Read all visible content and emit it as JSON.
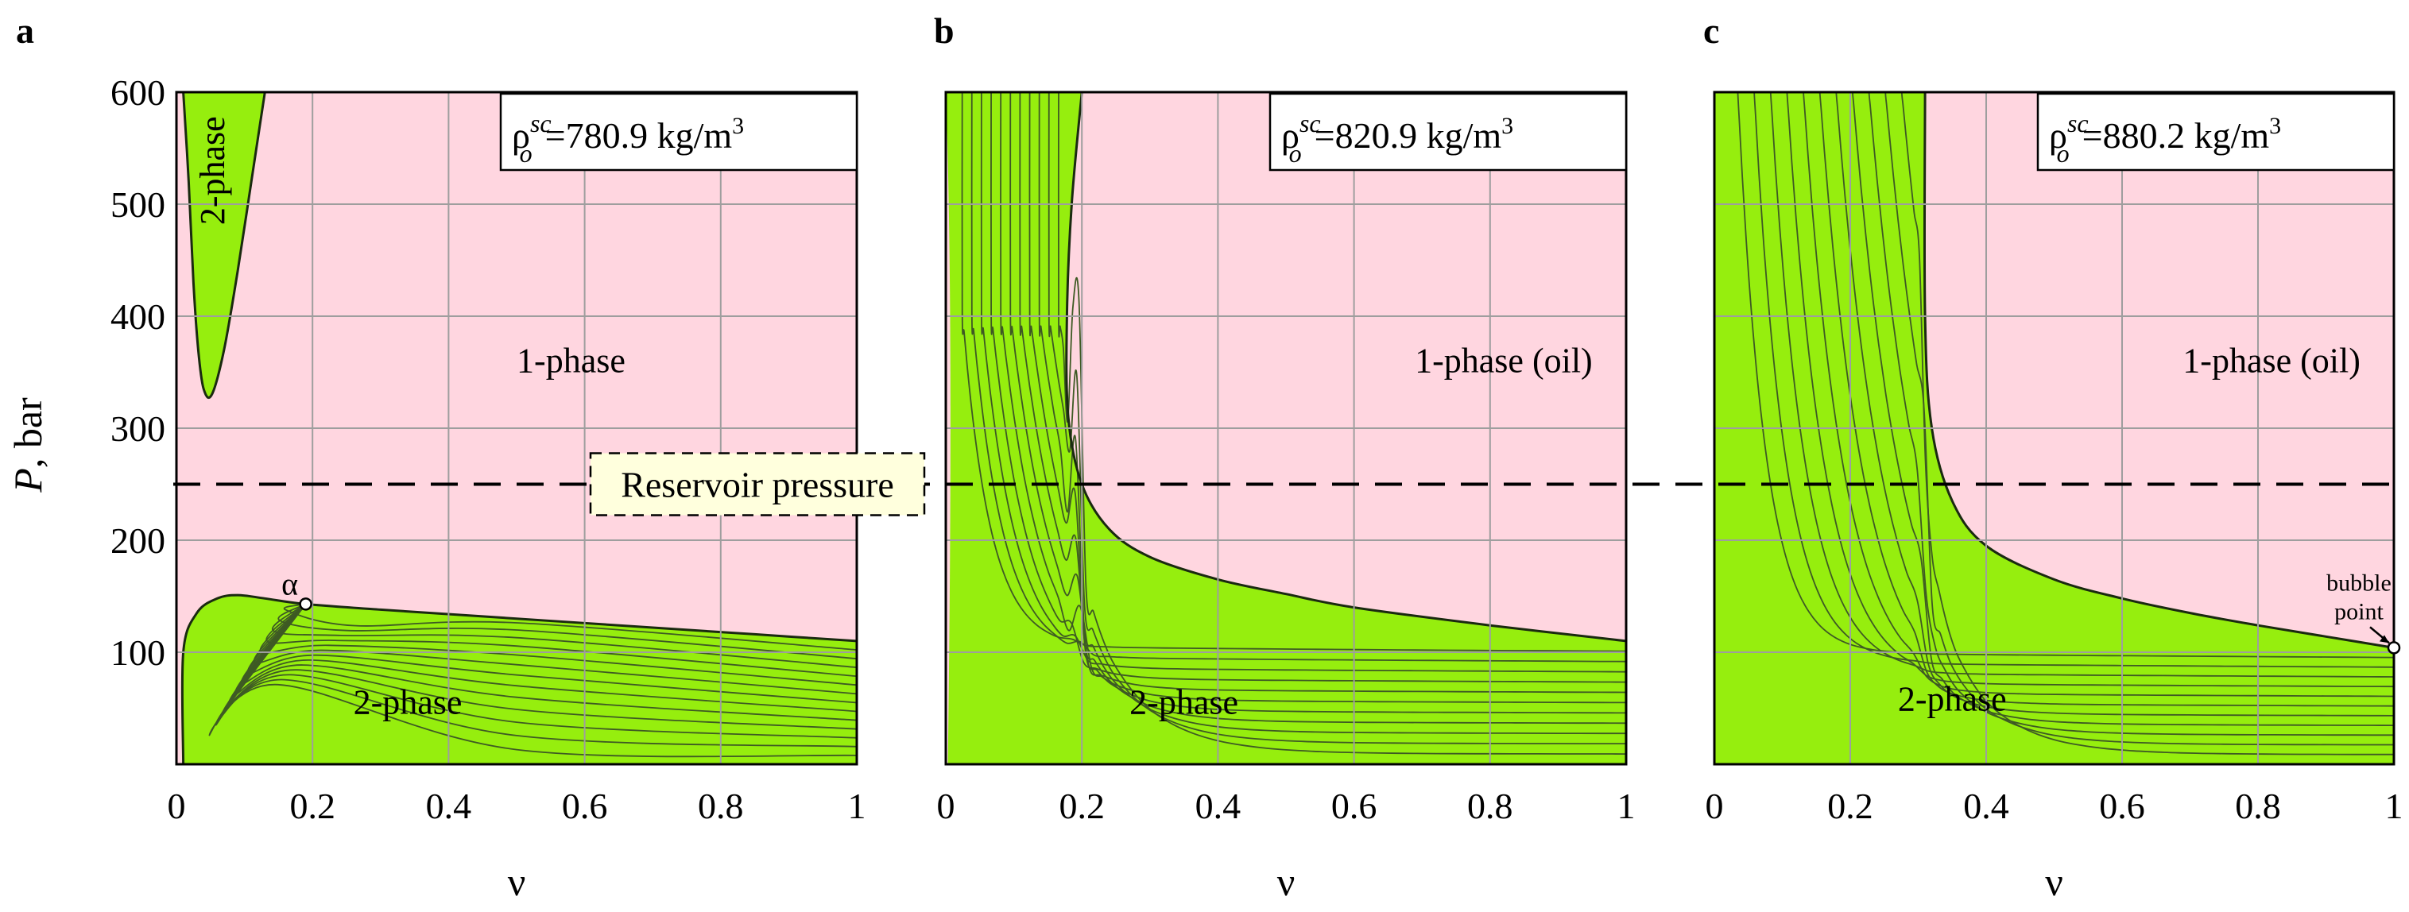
{
  "colors": {
    "one_phase": "#ffd6e0",
    "two_phase": "#96ee0e",
    "contour": "#3e5a24",
    "grid": "#9e9e9e",
    "dashed": "#000000",
    "label_box": "#ffffdd"
  },
  "shared": {
    "ylabel_var": "P",
    "ylabel_unit": ", bar",
    "xlabel": "ν",
    "reservoir_label": "Reservoir pressure",
    "reservoir_pressure": 250
  },
  "chart_data": [
    {
      "type": "area",
      "panel": "a",
      "title": "",
      "xlabel": "ν",
      "ylabel": "P, bar",
      "xlim": [
        0,
        1
      ],
      "ylim": [
        0,
        600
      ],
      "xticks": [
        "0",
        "0.2",
        "0.4",
        "0.6",
        "0.8",
        "1"
      ],
      "yticks": [
        "100",
        "200",
        "300",
        "400",
        "500",
        "600"
      ],
      "grid": true,
      "density_base": "ρ",
      "density_sup": "sc",
      "density_sub": "o",
      "density_value": "=780.9 kg/m",
      "density_exp": "3",
      "region_labels": [
        {
          "text": "1-phase",
          "x": 0.58,
          "y": 350
        },
        {
          "text": "2-phase",
          "x": 0.34,
          "y": 45
        },
        {
          "text": "2-phase",
          "x": 0.07,
          "y": 530,
          "rotate": true
        }
      ],
      "upper_envelope": [
        [
          0.01,
          600
        ],
        [
          0.018,
          520
        ],
        [
          0.025,
          430
        ],
        [
          0.032,
          370
        ],
        [
          0.04,
          335
        ],
        [
          0.052,
          330
        ],
        [
          0.07,
          370
        ],
        [
          0.09,
          440
        ],
        [
          0.11,
          520
        ],
        [
          0.13,
          600
        ]
      ],
      "lower_envelope": [
        [
          0.01,
          0
        ],
        [
          0.01,
          100
        ],
        [
          0.03,
          135
        ],
        [
          0.06,
          148
        ],
        [
          0.09,
          151
        ],
        [
          0.13,
          148
        ],
        [
          0.19,
          143
        ],
        [
          0.3,
          138
        ],
        [
          0.5,
          130
        ],
        [
          0.7,
          122
        ],
        [
          0.85,
          116
        ],
        [
          1.0,
          110
        ]
      ],
      "marker": {
        "label": "α",
        "x": 0.19,
        "y": 143
      },
      "contour_mode": "fan"
    },
    {
      "type": "area",
      "panel": "b",
      "title": "",
      "xlabel": "ν",
      "ylabel": "",
      "xlim": [
        0,
        1
      ],
      "ylim": [
        0,
        600
      ],
      "xticks": [
        "0",
        "0.2",
        "0.4",
        "0.6",
        "0.8",
        "1"
      ],
      "yticks": [],
      "grid": true,
      "density_base": "ρ",
      "density_sup": "sc",
      "density_sub": "o",
      "density_value": "=820.9 kg/m",
      "density_exp": "3",
      "region_labels": [
        {
          "text": "1-phase (oil)",
          "x": 0.82,
          "y": 350
        },
        {
          "text": "2-phase",
          "x": 0.35,
          "y": 45
        }
      ],
      "boundary": [
        [
          0.2,
          600
        ],
        [
          0.185,
          500
        ],
        [
          0.178,
          400
        ],
        [
          0.18,
          310
        ],
        [
          0.2,
          250
        ],
        [
          0.24,
          210
        ],
        [
          0.3,
          185
        ],
        [
          0.4,
          165
        ],
        [
          0.5,
          152
        ],
        [
          0.6,
          140
        ],
        [
          0.8,
          124
        ],
        [
          1.0,
          110
        ]
      ],
      "marker": null,
      "contour_mode": "L",
      "contour_shift": 0
    },
    {
      "type": "area",
      "panel": "c",
      "title": "",
      "xlabel": "ν",
      "ylabel": "",
      "xlim": [
        0,
        1
      ],
      "ylim": [
        0,
        600
      ],
      "xticks": [
        "0",
        "0.2",
        "0.4",
        "0.6",
        "0.8",
        "1"
      ],
      "yticks": [],
      "grid": true,
      "density_base": "ρ",
      "density_sup": "sc",
      "density_sub": "o",
      "density_value": "=880.2 kg/m",
      "density_exp": "3",
      "region_labels": [
        {
          "text": "1-phase (oil)",
          "x": 0.82,
          "y": 350
        },
        {
          "text": "2-phase",
          "x": 0.35,
          "y": 48
        }
      ],
      "boundary": [
        [
          0.31,
          600
        ],
        [
          0.31,
          400
        ],
        [
          0.32,
          300
        ],
        [
          0.35,
          235
        ],
        [
          0.4,
          195
        ],
        [
          0.5,
          165
        ],
        [
          0.6,
          148
        ],
        [
          0.7,
          135
        ],
        [
          0.8,
          124
        ],
        [
          0.9,
          114
        ],
        [
          1.0,
          104
        ]
      ],
      "marker": {
        "label_lines": [
          "bubble",
          "point"
        ],
        "x": 1.0,
        "y": 104
      },
      "contour_mode": "L",
      "contour_shift": 0.12
    }
  ]
}
